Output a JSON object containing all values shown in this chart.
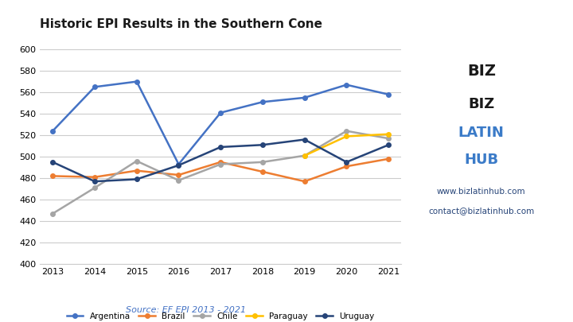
{
  "title": "Historic EPI Results in the Southern Cone",
  "years": [
    2013,
    2014,
    2015,
    2016,
    2017,
    2018,
    2019,
    2020,
    2021
  ],
  "series": {
    "Argentina": {
      "values": [
        524,
        565,
        570,
        493,
        541,
        551,
        555,
        567,
        558
      ],
      "color": "#4472C4",
      "marker": "o"
    },
    "Brazil": {
      "values": [
        482,
        481,
        487,
        483,
        495,
        486,
        477,
        491,
        498
      ],
      "color": "#ED7D31",
      "marker": "o"
    },
    "Chile": {
      "values": [
        447,
        471,
        496,
        478,
        493,
        495,
        501,
        524,
        517
      ],
      "color": "#A5A5A5",
      "marker": "o"
    },
    "Paraguay": {
      "values": [
        null,
        null,
        null,
        null,
        null,
        null,
        501,
        519,
        521
      ],
      "color": "#FFC000",
      "marker": "o"
    },
    "Uruguay": {
      "values": [
        495,
        477,
        479,
        492,
        509,
        511,
        516,
        495,
        511
      ],
      "color": "#264478",
      "marker": "o"
    }
  },
  "ylim": [
    400,
    610
  ],
  "yticks": [
    400,
    420,
    440,
    460,
    480,
    500,
    520,
    540,
    560,
    580,
    600
  ],
  "source_text": "Source: EF EPI 2013 - 2021",
  "source_color": "#4472C4",
  "website": "www.bizlatinhub.com",
  "contact": "contact@bizlatinhub.com",
  "background_color": "#FFFFFF"
}
